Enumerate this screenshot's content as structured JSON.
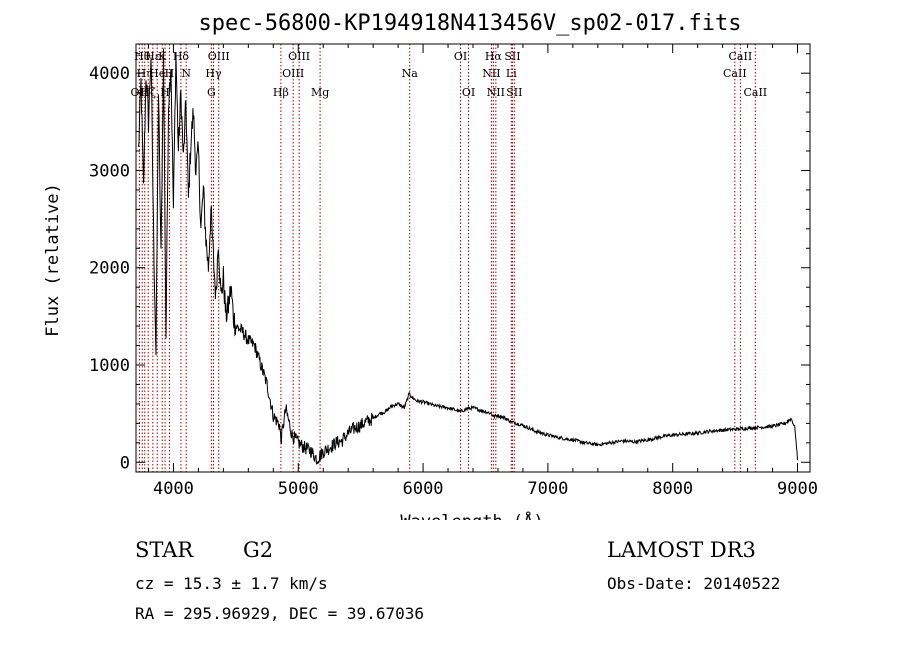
{
  "chart_data": {
    "type": "line",
    "title": "spec-56800-KP194918N413456V_sp02-017.fits",
    "xlabel": "Wavelength (Å)",
    "ylabel": "Flux (relative)",
    "xlim": [
      3700,
      9100
    ],
    "ylim": [
      -100,
      4300
    ],
    "xticks": [
      4000,
      5000,
      6000,
      7000,
      8000,
      9000
    ],
    "yticks": [
      0,
      1000,
      2000,
      3000,
      4000
    ],
    "line_color": "#000000",
    "marker_color": "#aa0000",
    "series": [
      {
        "name": "flux",
        "x": [
          3720,
          3740,
          3760,
          3780,
          3800,
          3820,
          3840,
          3860,
          3880,
          3900,
          3920,
          3940,
          3960,
          3980,
          4000,
          4020,
          4040,
          4060,
          4080,
          4100,
          4120,
          4140,
          4160,
          4180,
          4200,
          4220,
          4240,
          4260,
          4280,
          4300,
          4320,
          4340,
          4360,
          4380,
          4400,
          4420,
          4440,
          4460,
          4480,
          4500,
          4550,
          4600,
          4650,
          4700,
          4750,
          4800,
          4850,
          4861,
          4900,
          4950,
          5000,
          5050,
          5100,
          5150,
          5200,
          5250,
          5300,
          5350,
          5400,
          5450,
          5500,
          5550,
          5600,
          5650,
          5700,
          5750,
          5800,
          5850,
          5893,
          5900,
          5950,
          6000,
          6050,
          6100,
          6150,
          6200,
          6250,
          6300,
          6350,
          6400,
          6450,
          6500,
          6550,
          6563,
          6600,
          6650,
          6700,
          6750,
          6800,
          6900,
          7000,
          7100,
          7200,
          7300,
          7400,
          7500,
          7600,
          7700,
          7800,
          7900,
          8000,
          8100,
          8200,
          8300,
          8400,
          8500,
          8600,
          8700,
          8800,
          8900,
          8950,
          8980,
          9000
        ],
        "y": [
          3200,
          3900,
          2800,
          4000,
          3500,
          4200,
          2400,
          1100,
          3800,
          2100,
          4200,
          1300,
          3700,
          4100,
          2600,
          4200,
          3200,
          3800,
          3100,
          3700,
          2700,
          3300,
          3600,
          3000,
          3200,
          2400,
          2800,
          2300,
          2000,
          2600,
          2100,
          1700,
          2300,
          1700,
          1900,
          1500,
          1600,
          1800,
          1500,
          1400,
          1350,
          1250,
          1200,
          1000,
          800,
          480,
          380,
          220,
          550,
          280,
          200,
          150,
          120,
          30,
          110,
          150,
          200,
          220,
          300,
          350,
          380,
          420,
          450,
          500,
          520,
          580,
          600,
          560,
          720,
          680,
          630,
          620,
          600,
          580,
          570,
          560,
          540,
          520,
          550,
          560,
          540,
          520,
          500,
          470,
          480,
          460,
          420,
          400,
          380,
          320,
          280,
          250,
          230,
          200,
          180,
          200,
          220,
          210,
          230,
          260,
          280,
          290,
          300,
          320,
          330,
          340,
          350,
          360,
          370,
          400,
          450,
          350,
          20
        ]
      }
    ],
    "line_markers": [
      {
        "wavelength": 3727,
        "label": "OII",
        "row": 3
      },
      {
        "wavelength": 3750,
        "label": "Hθ",
        "row": 1
      },
      {
        "wavelength": 3770,
        "label": "Hη",
        "row": 2
      },
      {
        "wavelength": 3798,
        "label": "Hζ",
        "row": 3
      },
      {
        "wavelength": 3835,
        "label": "Hε",
        "row": 1
      },
      {
        "wavelength": 3870,
        "label": "He",
        "row": 2
      },
      {
        "wavelength": 3910,
        "label": "K",
        "row": 1
      },
      {
        "wavelength": 3933,
        "label": "H",
        "row": 3
      },
      {
        "wavelength": 3968,
        "label": "H",
        "row": 2
      },
      {
        "wavelength": 4060,
        "label": "Hδ",
        "row": 1
      },
      {
        "wavelength": 4102,
        "label": "N",
        "row": 2
      },
      {
        "wavelength": 4304,
        "label": "G",
        "row": 3
      },
      {
        "wavelength": 4321,
        "label": "Hγ",
        "row": 2
      },
      {
        "wavelength": 4363,
        "label": "OIII",
        "row": 1
      },
      {
        "wavelength": 4861,
        "label": "Hβ",
        "row": 3
      },
      {
        "wavelength": 4959,
        "label": "OIII",
        "row": 2
      },
      {
        "wavelength": 5007,
        "label": "OIII",
        "row": 1
      },
      {
        "wavelength": 5175,
        "label": "Mg",
        "row": 3
      },
      {
        "wavelength": 5893,
        "label": "Na",
        "row": 2
      },
      {
        "wavelength": 6300,
        "label": "OI",
        "row": 1
      },
      {
        "wavelength": 6364,
        "label": "OI",
        "row": 3
      },
      {
        "wavelength": 6548,
        "label": "NII",
        "row": 2
      },
      {
        "wavelength": 6563,
        "label": "Hα",
        "row": 1
      },
      {
        "wavelength": 6583,
        "label": "NII",
        "row": 3
      },
      {
        "wavelength": 6707,
        "label": "Li",
        "row": 2
      },
      {
        "wavelength": 6716,
        "label": "SII",
        "row": 1
      },
      {
        "wavelength": 6731,
        "label": "SII",
        "row": 3
      },
      {
        "wavelength": 8498,
        "label": "CaII",
        "row": 2
      },
      {
        "wavelength": 8542,
        "label": "CaII",
        "row": 1
      },
      {
        "wavelength": 8662,
        "label": "CaII",
        "row": 3
      }
    ]
  },
  "info": {
    "object_class": "STAR",
    "subclass": "G2",
    "redshift": "cz = 15.3 ± 1.7 km/s",
    "coords": "RA = 295.96929, DEC =  39.67036",
    "survey": "LAMOST DR3",
    "obs_date": "Obs-Date: 20140522"
  }
}
